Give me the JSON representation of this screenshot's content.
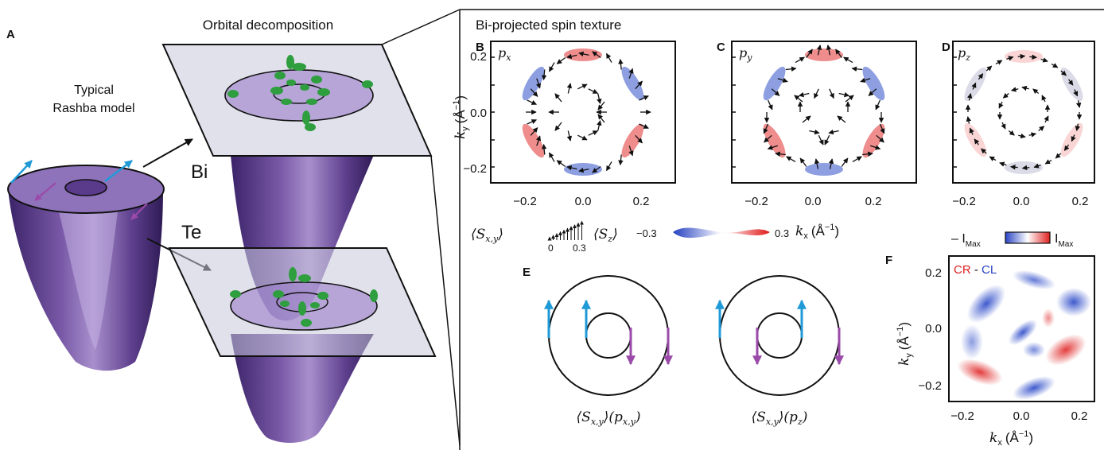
{
  "panels": {
    "A": {
      "letter": "A",
      "title": "Orbital decomposition",
      "model_line1": "Typical",
      "model_line2": "Rashba model",
      "bi": "Bi",
      "te": "Te"
    },
    "B": {
      "letter": "B",
      "orbital": "p",
      "orbital_sub": "x"
    },
    "C": {
      "letter": "C",
      "orbital": "p",
      "orbital_sub": "y"
    },
    "D": {
      "letter": "D",
      "orbital": "p",
      "orbital_sub": "z"
    },
    "E": {
      "letter": "E",
      "caption_left": "⟨S",
      "caption_left_sub": "x,y",
      "caption_left_tail": "⟩(p",
      "caption_left_tail_sub": "x,y",
      "caption_left_end": ")",
      "caption_right": "⟨S",
      "caption_right_sub": "x,y",
      "caption_right_tail": "⟩(p",
      "caption_right_tail_sub": "z",
      "caption_right_end": ")"
    },
    "F": {
      "letter": "F",
      "cr": "CR",
      "dash": " - ",
      "cl": "CL",
      "colorbar_neg": "– I",
      "colorbar_neg_sub": "Max",
      "colorbar_pos": "I",
      "colorbar_pos_sub": "Max"
    }
  },
  "header": {
    "bi_projected": "Bi-projected spin texture"
  },
  "axes": {
    "ky_label": "k",
    "ky_sub": "y",
    "ky_unit": "(Å",
    "ky_exp": "−1",
    "ky_close": ")",
    "kx_label": "k",
    "kx_sub": "x",
    "kx_unit": "(Å",
    "kx_exp": "−1",
    "kx_close": ")",
    "ticks_y": [
      "0.2",
      "0.0",
      "−0.2"
    ],
    "ticks_x": [
      "−0.2",
      "0.0",
      "0.2"
    ]
  },
  "legend": {
    "sxy": "⟨S",
    "sxy_sub": "x,y",
    "sxy_close": "⟩",
    "sxy_min": "0",
    "sxy_max": "0.3",
    "sz": "⟨S",
    "sz_sub": "z",
    "sz_close": "⟩",
    "sz_min": "−0.3",
    "sz_max": "0.3"
  },
  "colors": {
    "blue": "#3050c8",
    "red": "#e23030",
    "arrow_cyan": "#1f9ad6",
    "arrow_purple": "#9a4aa8",
    "orbital_green": "#2e9e3e",
    "cone_purple": "#5a3a8a"
  }
}
